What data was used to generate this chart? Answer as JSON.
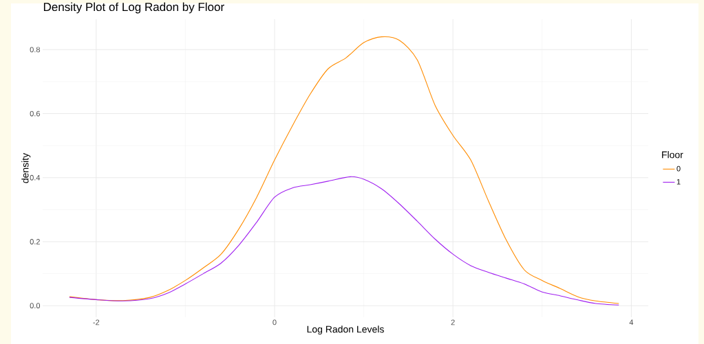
{
  "chart_data": {
    "type": "line",
    "title": "Density Plot of Log Radon by Floor",
    "xlabel": "Log Radon Levels",
    "ylabel": "density",
    "legend_title": "Floor",
    "series": [
      {
        "name": "0",
        "color": "#ff8c00",
        "x": [
          -2.3,
          -2.0,
          -1.7,
          -1.4,
          -1.2,
          -1.0,
          -0.8,
          -0.6,
          -0.4,
          -0.2,
          0,
          0.2,
          0.4,
          0.6,
          0.8,
          1.0,
          1.2,
          1.4,
          1.6,
          1.8,
          2.0,
          2.2,
          2.4,
          2.6,
          2.8,
          3.0,
          3.2,
          3.4,
          3.6,
          3.86
        ],
        "values": [
          0.028,
          0.019,
          0.016,
          0.026,
          0.047,
          0.079,
          0.118,
          0.161,
          0.24,
          0.339,
          0.455,
          0.562,
          0.661,
          0.74,
          0.774,
          0.822,
          0.84,
          0.829,
          0.768,
          0.626,
          0.532,
          0.455,
          0.326,
          0.204,
          0.112,
          0.079,
          0.054,
          0.028,
          0.015,
          0.007
        ]
      },
      {
        "name": "1",
        "color": "#a020f0",
        "x": [
          -2.3,
          -2.0,
          -1.7,
          -1.4,
          -1.2,
          -1.0,
          -0.8,
          -0.6,
          -0.4,
          -0.2,
          0,
          0.2,
          0.4,
          0.6,
          0.85,
          1.0,
          1.2,
          1.4,
          1.6,
          1.8,
          2.0,
          2.2,
          2.4,
          2.6,
          2.8,
          3.0,
          3.2,
          3.4,
          3.6,
          3.86
        ],
        "values": [
          0.026,
          0.019,
          0.015,
          0.022,
          0.039,
          0.068,
          0.1,
          0.133,
          0.189,
          0.261,
          0.339,
          0.368,
          0.378,
          0.389,
          0.403,
          0.395,
          0.365,
          0.318,
          0.264,
          0.208,
          0.161,
          0.125,
          0.104,
          0.086,
          0.068,
          0.043,
          0.031,
          0.018,
          0.007,
          0.002
        ]
      }
    ],
    "xlim": [
      -2.6,
      4.19
    ],
    "ylim": [
      -0.036,
      0.895
    ],
    "xticks": [
      -2,
      0,
      2,
      4
    ],
    "yticks": [
      {
        "value": 0,
        "label": "0.0"
      },
      0.2,
      0.4,
      0.6,
      0.8
    ],
    "grid": true,
    "legend": "right",
    "marker": "none",
    "line_style": "solid"
  }
}
